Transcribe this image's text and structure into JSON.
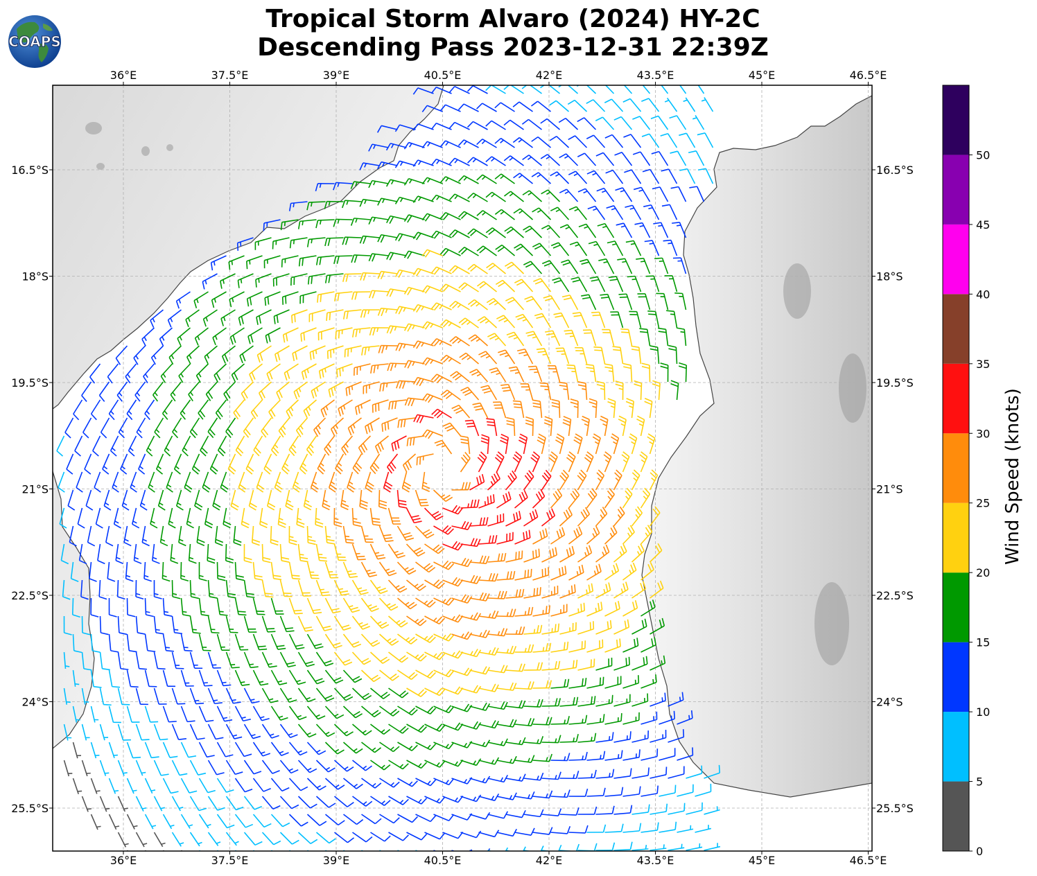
{
  "header": {
    "title_line_1": "Tropical Storm Alvaro (2024) HY-2C",
    "title_line_2": "Descending Pass 2023-12-31 22:39Z",
    "logo_text": "COAPS"
  },
  "map": {
    "lon_ticks": [
      "36°E",
      "37.5°E",
      "39°E",
      "40.5°E",
      "42°E",
      "43.5°E",
      "45°E",
      "46.5°E"
    ],
    "lat_ticks": [
      "16.5°S",
      "18°S",
      "19.5°S",
      "21°S",
      "22.5°S",
      "24°S",
      "25.5°S"
    ],
    "land_color": "#ececec",
    "ocean_color": "#ffffff",
    "coastline_color": "#444444",
    "storm_center_lon": 40.5,
    "storm_center_lat": -20.7
  },
  "colorbar": {
    "label": "Wind Speed (knots)",
    "ticks": [
      "0",
      "5",
      "10",
      "15",
      "20",
      "25",
      "30",
      "35",
      "40",
      "45",
      "50"
    ],
    "bins": [
      {
        "min": 0,
        "max": 5,
        "color": "#555555"
      },
      {
        "min": 5,
        "max": 10,
        "color": "#00bfff"
      },
      {
        "min": 10,
        "max": 15,
        "color": "#0037ff"
      },
      {
        "min": 15,
        "max": 20,
        "color": "#009900"
      },
      {
        "min": 20,
        "max": 25,
        "color": "#ffd110"
      },
      {
        "min": 25,
        "max": 30,
        "color": "#ff8c0c"
      },
      {
        "min": 30,
        "max": 35,
        "color": "#ff1010"
      },
      {
        "min": 35,
        "max": 40,
        "color": "#86402a"
      },
      {
        "min": 40,
        "max": 45,
        "color": "#ff00ee"
      },
      {
        "min": 45,
        "max": 50,
        "color": "#8800b0"
      },
      {
        "min": 50,
        "max": 55,
        "color": "#2e005e"
      }
    ]
  }
}
